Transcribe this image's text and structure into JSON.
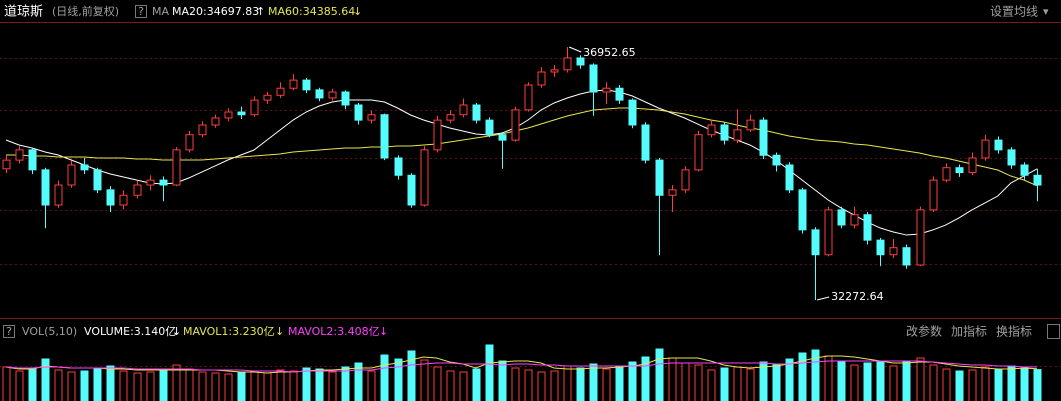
{
  "chart_data": {
    "type": "candlestick",
    "title": "道琼斯",
    "subtitle": "(日线,前复权)",
    "help": "?",
    "indicator": "MA",
    "settings": "设置均线",
    "settings_arrow": "▾",
    "up_color": "#ff3c3c",
    "down_color": "#54fcfc",
    "open": [
      34700,
      34860,
      35050,
      34680,
      34030,
      34400,
      34770,
      34680,
      34310,
      34030,
      34210,
      34400,
      34490,
      34400,
      35050,
      35330,
      35510,
      35640,
      35750,
      35700,
      35970,
      36060,
      36190,
      36340,
      36160,
      36010,
      36120,
      35880,
      35600,
      35700,
      34900,
      34580,
      34030,
      35050,
      35600,
      35700,
      35880,
      35600,
      35330,
      35230,
      35790,
      36250,
      36490,
      36530,
      36750,
      36620,
      36120,
      36190,
      35970,
      35510,
      34860,
      34210,
      34310,
      34680,
      35330,
      35510,
      35230,
      35420,
      35600,
      34950,
      34770,
      34310,
      33570,
      33110,
      33940,
      33660,
      33850,
      33380,
      33110,
      33240,
      32920,
      33940,
      34490,
      34720,
      34630,
      34900,
      35230,
      35050,
      34770,
      34580
    ],
    "high": [
      34950,
      35120,
      35080,
      34720,
      34480,
      34850,
      34900,
      34720,
      34380,
      34300,
      34480,
      34580,
      34560,
      35100,
      35400,
      35580,
      35700,
      35820,
      35850,
      36040,
      36120,
      36300,
      36450,
      36380,
      36200,
      36180,
      36150,
      35920,
      35780,
      35720,
      34950,
      34620,
      35120,
      35680,
      35780,
      36000,
      35920,
      35650,
      35380,
      35850,
      36300,
      36580,
      36620,
      36952.65,
      36800,
      36650,
      36300,
      36250,
      36000,
      35560,
      34900,
      34400,
      34750,
      35400,
      35600,
      35560,
      35800,
      35700,
      35650,
      35000,
      34820,
      34350,
      33620,
      34000,
      34000,
      34000,
      33900,
      33420,
      33400,
      33300,
      34000,
      34560,
      34800,
      34780,
      35000,
      35330,
      35300,
      35100,
      34820,
      34700
    ],
    "low": [
      34620,
      34800,
      34600,
      33600,
      33980,
      34350,
      34600,
      34250,
      33900,
      33950,
      34150,
      34300,
      34100,
      34380,
      35000,
      35280,
      35460,
      35580,
      35620,
      35660,
      35900,
      36010,
      36150,
      36100,
      35950,
      35960,
      35800,
      35520,
      35540,
      34860,
      34500,
      33980,
      34000,
      35000,
      35540,
      35650,
      35540,
      35280,
      34700,
      35200,
      35760,
      36200,
      36400,
      36480,
      36550,
      35680,
      35900,
      35900,
      35450,
      34800,
      33100,
      33900,
      34250,
      34650,
      35280,
      35150,
      35180,
      35380,
      34880,
      34650,
      34250,
      33500,
      32272.64,
      33080,
      33600,
      33600,
      33300,
      32900,
      33050,
      32850,
      32900,
      33900,
      34450,
      34550,
      34580,
      34850,
      34980,
      34700,
      34500,
      34100
    ],
    "close": [
      34860,
      35050,
      34680,
      34030,
      34400,
      34770,
      34680,
      34310,
      34030,
      34210,
      34400,
      34490,
      34400,
      35050,
      35330,
      35510,
      35640,
      35750,
      35700,
      35970,
      36060,
      36190,
      36340,
      36160,
      36010,
      36120,
      35880,
      35600,
      35700,
      34900,
      34580,
      34030,
      35050,
      35600,
      35700,
      35880,
      35600,
      35330,
      35230,
      35790,
      36250,
      36490,
      36530,
      36750,
      36620,
      36120,
      36190,
      35970,
      35510,
      34860,
      34210,
      34310,
      34680,
      35330,
      35510,
      35230,
      35420,
      35600,
      34950,
      34770,
      34310,
      33570,
      33110,
      33940,
      33660,
      33850,
      33380,
      33110,
      33240,
      32920,
      33940,
      34490,
      34720,
      34630,
      34900,
      35230,
      35050,
      34770,
      34580,
      34400
    ],
    "series": [
      {
        "name": "MA20",
        "color": "#ffffff",
        "value_label": "MA20:34697.83",
        "trend": "↑",
        "values": [
          35232,
          35140,
          35084,
          35010,
          34955,
          34862,
          34770,
          34677,
          34603,
          34548,
          34492,
          34437,
          34418,
          34437,
          34529,
          34640,
          34751,
          34862,
          34955,
          35047,
          35232,
          35417,
          35602,
          35750,
          35861,
          35935,
          35972,
          35972,
          35972,
          35935,
          35824,
          35695,
          35602,
          35528,
          35454,
          35398,
          35343,
          35324,
          35361,
          35454,
          35602,
          35787,
          35917,
          36009,
          36083,
          36139,
          36157,
          36120,
          36046,
          35935,
          35824,
          35732,
          35639,
          35528,
          35417,
          35324,
          35232,
          35140,
          35010,
          34862,
          34677,
          34492,
          34307,
          34122,
          33974,
          33844,
          33715,
          33604,
          33530,
          33474,
          33493,
          33567,
          33659,
          33789,
          33937,
          34066,
          34196,
          34437,
          34566,
          34697.83
        ]
      },
      {
        "name": "MA60",
        "color": "#e6e650",
        "value_label": "MA60:34385.64",
        "trend": "↓",
        "values": [
          34955,
          34955,
          34936,
          34936,
          34918,
          34918,
          34918,
          34899,
          34899,
          34899,
          34881,
          34881,
          34862,
          34862,
          34862,
          34862,
          34881,
          34899,
          34918,
          34936,
          34955,
          34973,
          35010,
          35029,
          35047,
          35066,
          35084,
          35084,
          35103,
          35103,
          35121,
          35121,
          35140,
          35158,
          35195,
          35232,
          35269,
          35306,
          35343,
          35398,
          35454,
          35528,
          35602,
          35676,
          35732,
          35787,
          35806,
          35824,
          35824,
          35806,
          35787,
          35750,
          35713,
          35657,
          35602,
          35565,
          35509,
          35454,
          35417,
          35361,
          35306,
          35269,
          35232,
          35214,
          35195,
          35158,
          35140,
          35103,
          35066,
          35029,
          34992,
          34936,
          34899,
          34844,
          34788,
          34733,
          34677,
          34566,
          34492,
          34385.64
        ]
      }
    ],
    "volume_panel": {
      "help": "?",
      "title": "VOL(5,10)",
      "value_label": "VOLUME:3.140亿",
      "trend": "↓",
      "values": [
        3.4,
        3.0,
        3.3,
        4.2,
        3.1,
        2.9,
        3.0,
        3.2,
        3.5,
        3.0,
        2.8,
        2.9,
        3.1,
        3.6,
        3.2,
        2.9,
        2.8,
        2.7,
        2.9,
        3.0,
        2.8,
        3.1,
        3.0,
        3.3,
        3.2,
        2.9,
        3.4,
        3.8,
        3.0,
        4.6,
        4.2,
        5.0,
        4.1,
        3.4,
        3.0,
        2.9,
        3.2,
        5.6,
        4.0,
        3.3,
        3.1,
        2.9,
        3.0,
        3.5,
        3.3,
        3.7,
        3.2,
        3.4,
        3.9,
        4.4,
        5.2,
        4.3,
        3.8,
        3.6,
        3.1,
        3.3,
        3.4,
        3.2,
        3.9,
        3.7,
        4.2,
        4.8,
        5.1,
        4.5,
        3.9,
        3.6,
        3.8,
        4.0,
        3.5,
        3.9,
        4.3,
        3.6,
        3.2,
        3.0,
        3.1,
        3.4,
        3.2,
        3.5,
        3.3,
        3.14
      ],
      "series": [
        {
          "name": "MAVOL1",
          "color": "#e6e650",
          "value_label": "MAVOL1:3.230亿",
          "trend": "↓",
          "values": [
            3.4,
            3.2,
            3.2,
            3.5,
            3.4,
            3.3,
            3.3,
            3.3,
            3.2,
            3.2,
            3.1,
            3.1,
            3.1,
            3.1,
            3.1,
            3.1,
            3.1,
            3.0,
            2.9,
            2.9,
            2.8,
            2.9,
            2.9,
            3.0,
            3.1,
            3.1,
            3.2,
            3.3,
            3.3,
            3.6,
            3.8,
            4.1,
            4.4,
            4.3,
            3.9,
            3.7,
            3.3,
            3.8,
            3.9,
            4.0,
            4.0,
            3.8,
            3.3,
            3.2,
            3.2,
            3.3,
            3.3,
            3.4,
            3.5,
            3.7,
            4.2,
            4.3,
            4.3,
            4.3,
            4.0,
            3.6,
            3.4,
            3.3,
            3.4,
            3.5,
            3.7,
            4.0,
            4.3,
            4.5,
            4.5,
            4.4,
            4.2,
            4.0,
            3.8,
            3.8,
            3.9,
            3.9,
            3.7,
            3.5,
            3.4,
            3.3,
            3.2,
            3.2,
            3.3,
            3.23
          ]
        },
        {
          "name": "MAVOL2",
          "color": "#ff40ff",
          "value_label": "MAVOL2:3.408亿",
          "trend": "↓",
          "values": [
            3.4,
            3.3,
            3.3,
            3.4,
            3.4,
            3.3,
            3.3,
            3.3,
            3.3,
            3.3,
            3.2,
            3.2,
            3.2,
            3.2,
            3.2,
            3.1,
            3.1,
            3.1,
            3.1,
            3.0,
            3.0,
            3.0,
            2.9,
            3.0,
            3.0,
            3.0,
            3.0,
            3.1,
            3.1,
            3.3,
            3.4,
            3.6,
            3.7,
            3.8,
            3.8,
            3.7,
            3.7,
            3.7,
            3.6,
            3.7,
            3.7,
            3.6,
            3.6,
            3.5,
            3.5,
            3.5,
            3.5,
            3.5,
            3.5,
            3.5,
            3.7,
            3.8,
            3.8,
            3.8,
            3.8,
            3.8,
            3.8,
            3.8,
            3.8,
            3.7,
            3.7,
            3.8,
            3.9,
            4.0,
            4.0,
            4.0,
            4.0,
            4.0,
            4.0,
            4.0,
            4.0,
            3.9,
            3.8,
            3.7,
            3.6,
            3.6,
            3.5,
            3.5,
            3.4,
            3.408
          ]
        }
      ],
      "buttons": [
        "改参数",
        "加指标",
        "换指标"
      ]
    }
  }
}
